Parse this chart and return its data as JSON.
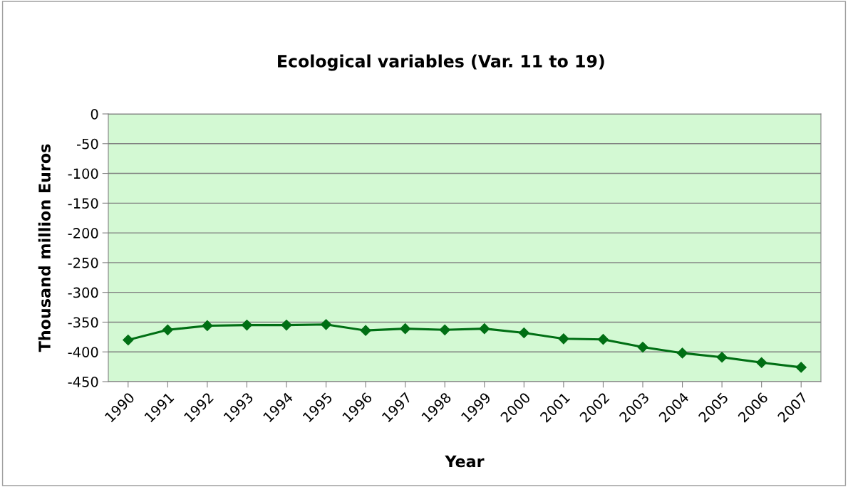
{
  "chart_data": {
    "type": "line",
    "title": "Ecological variables (Var. 11 to 19)",
    "xlabel": "Year",
    "ylabel": "Thousand million Euros",
    "categories": [
      "1990",
      "1991",
      "1992",
      "1993",
      "1994",
      "1995",
      "1996",
      "1997",
      "1998",
      "1999",
      "2000",
      "2001",
      "2002",
      "2003",
      "2004",
      "2005",
      "2006",
      "2007"
    ],
    "series": [
      {
        "color": "#006f14",
        "values": [
          -380,
          -363,
          -356,
          -355,
          -355,
          -354,
          -364,
          -361,
          -363,
          -361,
          -368,
          -378,
          -379,
          -392,
          -402,
          -409,
          -418,
          -426
        ]
      }
    ],
    "ylim": [
      -450,
      0
    ],
    "yticks": [
      -450,
      -400,
      -350,
      -300,
      -250,
      -200,
      -150,
      -100,
      -50,
      0
    ],
    "grid": "y",
    "marker": "diamond",
    "line_style": "solid",
    "legend": false
  }
}
